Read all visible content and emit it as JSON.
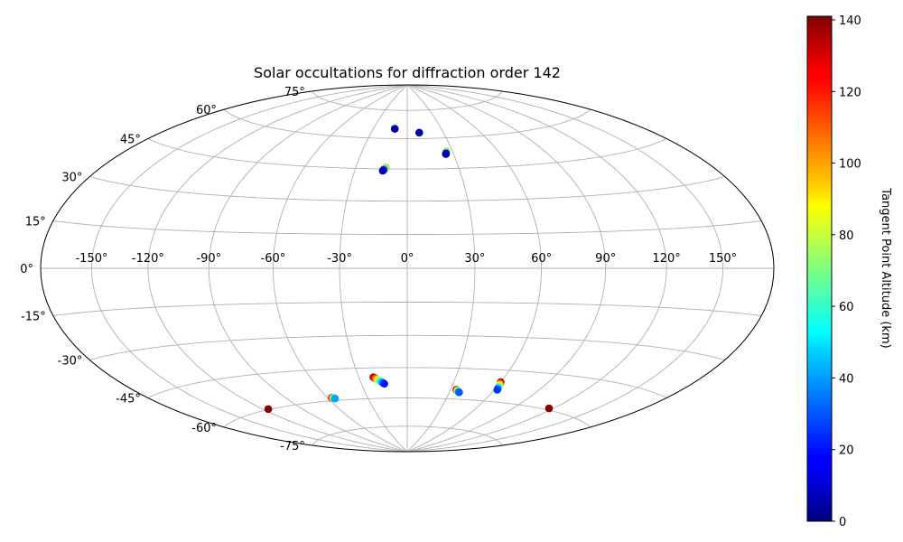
{
  "chart_data": {
    "type": "scatter",
    "projection": "hammer",
    "title": "Solar occultations for diffraction order 142",
    "longitude_ticks": [
      -150,
      -120,
      -90,
      -60,
      -30,
      0,
      30,
      60,
      90,
      120,
      150
    ],
    "longitude_tick_labels": [
      "-150°",
      "-120°",
      "-90°",
      "-60°",
      "-30°",
      "0°",
      "30°",
      "60°",
      "90°",
      "120°",
      "150°"
    ],
    "latitude_ticks": [
      -75,
      -60,
      -45,
      -30,
      -15,
      0,
      15,
      30,
      45,
      60,
      75
    ],
    "latitude_tick_labels": [
      "-75°",
      "-60°",
      "-45°",
      "-30°",
      "-15°",
      "0°",
      "15°",
      "30°",
      "45°",
      "60°",
      "75°"
    ],
    "grid": true,
    "colorbar": {
      "label": "Tangent Point Altitude (km)",
      "colormap": "jet",
      "range": [
        0,
        141
      ],
      "ticks": [
        0,
        20,
        40,
        60,
        80,
        100,
        120,
        140
      ],
      "tick_labels": [
        "0",
        "20",
        "40",
        "60",
        "80",
        "100",
        "120",
        "140"
      ]
    },
    "series": [
      {
        "lon_start": -11,
        "lat_start": 65.0,
        "lon_end": -11,
        "lat_end": 65.0,
        "alt_start": 5,
        "alt_end": 5
      },
      {
        "lon_start": 10,
        "lat_start": 63.0,
        "lon_end": 10,
        "lat_end": 63.0,
        "alt_start": 5,
        "alt_end": 5
      },
      {
        "lon_start": 26,
        "lat_start": 53.3,
        "lon_end": 25,
        "lat_end": 52.0,
        "alt_start": 110,
        "alt_end": 5
      },
      {
        "lon_start": -12.5,
        "lat_start": 45.7,
        "lon_end": -14,
        "lat_end": 44.1,
        "alt_start": 110,
        "alt_end": 5
      },
      {
        "lon_start": -21,
        "lat_start": -49.5,
        "lon_end": -15,
        "lat_end": -52.8,
        "alt_start": 140,
        "alt_end": 20
      },
      {
        "lon_start": 34,
        "lat_start": -55.4,
        "lon_end": 37,
        "lat_end": -56.6,
        "alt_start": 140,
        "alt_end": 30
      },
      {
        "lon_start": 60,
        "lat_start": -50.6,
        "lon_end": 62,
        "lat_end": -54.3,
        "alt_start": 140,
        "alt_end": 25
      },
      {
        "lon_start": -57,
        "lat_start": -58.6,
        "lon_end": -55,
        "lat_end": -59.0,
        "alt_start": 140,
        "alt_end": 40
      },
      {
        "lon_start": -116,
        "lat_start": -59.8,
        "lon_end": -116,
        "lat_end": -59.8,
        "alt_start": 140,
        "alt_end": 140
      },
      {
        "lon_start": 117,
        "lat_start": -59.3,
        "lon_end": 117,
        "lat_end": -59.3,
        "alt_start": 140,
        "alt_end": 140
      }
    ]
  }
}
